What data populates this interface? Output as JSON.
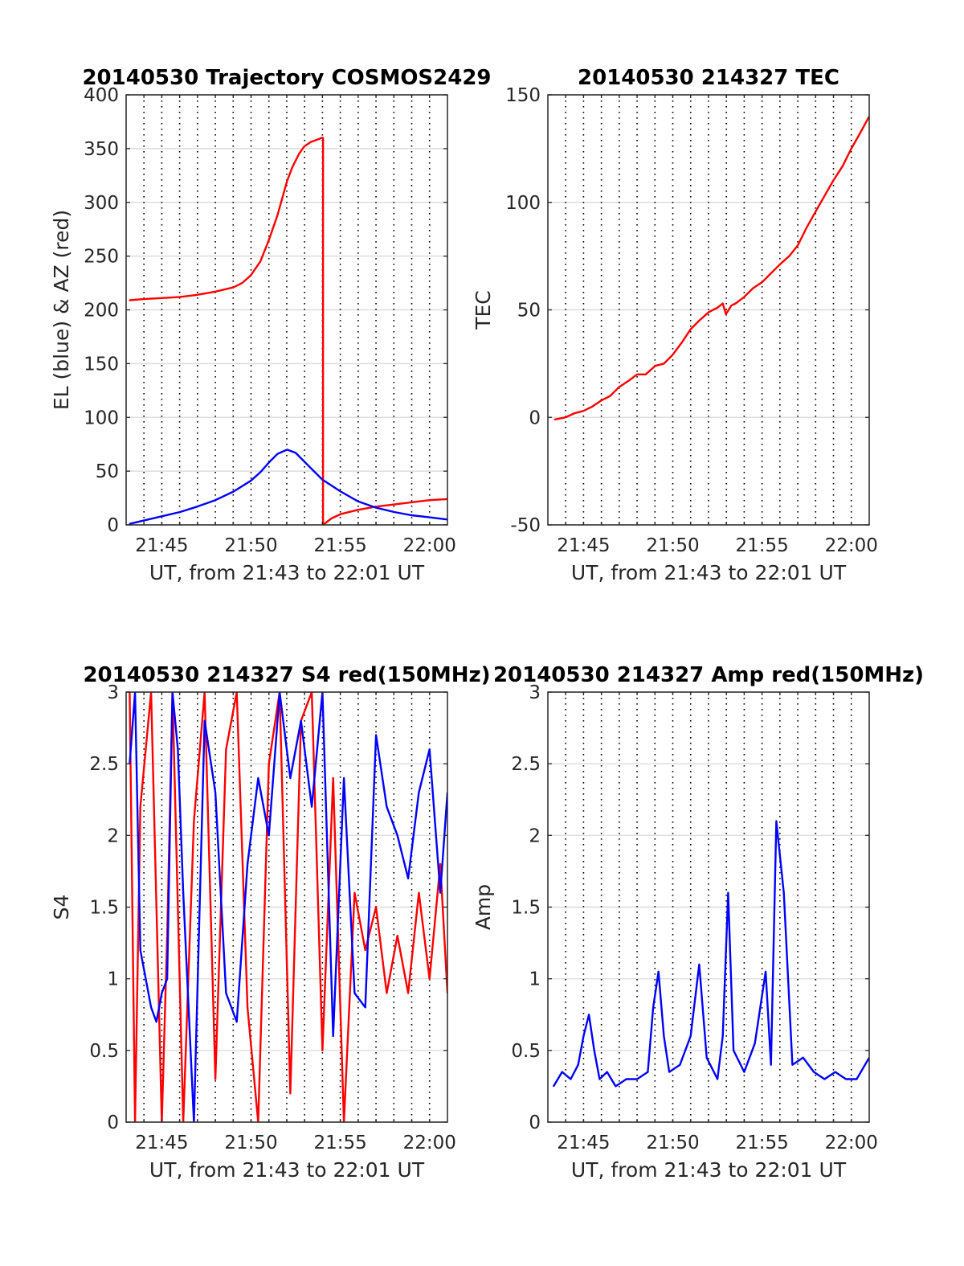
{
  "chart_data": [
    {
      "type": "line",
      "title": "20140530 Trajectory COSMOS2429",
      "xlabel": "UT, from 21:43 to 22:01 UT",
      "ylabel": "EL (blue) & AZ (red)",
      "xlim": [
        21.7167,
        22.0167
      ],
      "ylim": [
        0,
        400
      ],
      "yticks": [
        "0",
        "50",
        "100",
        "150",
        "200",
        "250",
        "300",
        "350",
        "400"
      ],
      "xticks": [
        "21:45",
        "21:50",
        "21:55",
        "22:00"
      ],
      "grid": "y-solid, x-dotted",
      "series": [
        {
          "color": "#ff0000",
          "x": [
            21.72,
            21.733,
            21.75,
            21.767,
            21.783,
            21.8,
            21.817,
            21.825,
            21.833,
            21.842,
            21.85,
            21.858,
            21.867,
            21.872,
            21.878,
            21.883,
            21.889,
            21.894,
            21.8995,
            21.9005,
            21.9005,
            21.9083,
            21.917,
            21.933,
            21.95,
            21.967,
            21.983,
            22.0,
            22.0167
          ],
          "values": [
            209,
            210,
            211,
            212,
            214,
            217,
            221,
            225,
            232,
            245,
            265,
            288,
            320,
            333,
            345,
            352,
            356,
            358,
            360,
            360,
            0,
            6,
            10,
            14,
            17,
            19,
            21,
            23,
            24
          ]
        },
        {
          "color": "#0000ff",
          "x": [
            21.72,
            21.75,
            21.767,
            21.783,
            21.8,
            21.817,
            21.833,
            21.842,
            21.85,
            21.858,
            21.867,
            21.875,
            21.883,
            21.892,
            21.9,
            21.917,
            21.933,
            21.95,
            21.967,
            21.983,
            22.0,
            22.0167
          ],
          "values": [
            1,
            8,
            12,
            17,
            23,
            31,
            41,
            49,
            58,
            66,
            70,
            67,
            59,
            50,
            42,
            31,
            22,
            16,
            12,
            9,
            7,
            5
          ]
        }
      ]
    },
    {
      "type": "line",
      "title": "20140530 214327 TEC",
      "xlabel": "UT, from 21:43 to 22:01 UT",
      "ylabel": "TEC",
      "xlim": [
        21.7167,
        22.0167
      ],
      "ylim": [
        -50,
        150
      ],
      "yticks": [
        "-50",
        "0",
        "50",
        "100",
        "150"
      ],
      "xticks": [
        "21:45",
        "21:50",
        "21:55",
        "22:00"
      ],
      "grid": "y-solid, x-dotted",
      "series": [
        {
          "color": "#ff0000",
          "x": [
            21.723,
            21.733,
            21.742,
            21.75,
            21.758,
            21.767,
            21.775,
            21.783,
            21.792,
            21.8,
            21.808,
            21.817,
            21.825,
            21.833,
            21.842,
            21.85,
            21.858,
            21.867,
            21.875,
            21.88,
            21.883,
            21.888,
            21.892,
            21.9,
            21.908,
            21.917,
            21.925,
            21.933,
            21.942,
            21.95,
            21.958,
            21.967,
            21.975,
            21.983,
            21.992,
            22.0,
            22.008,
            22.0167
          ],
          "values": [
            -1,
            0,
            2,
            3,
            5,
            8,
            10,
            14,
            17,
            20,
            20,
            24,
            25,
            29,
            35,
            41,
            45,
            49,
            51,
            53,
            48,
            52,
            53,
            56,
            60,
            63,
            67,
            71,
            75,
            80,
            88,
            96,
            103,
            110,
            117,
            125,
            132,
            140
          ]
        }
      ]
    },
    {
      "type": "line",
      "title": "20140530 214327 S4 red(150MHz)",
      "xlabel": "UT, from 21:43 to 22:01 UT",
      "ylabel": "S4",
      "xlim": [
        21.7167,
        22.0167
      ],
      "ylim": [
        0,
        3
      ],
      "yticks": [
        "0",
        "0.5",
        "1",
        "1.5",
        "2",
        "2.5",
        "3"
      ],
      "xticks": [
        "21:45",
        "21:50",
        "21:55",
        "22:00"
      ],
      "grid": "y-solid, x-dotted",
      "series": [
        {
          "color": "#ff0000",
          "x": [
            21.72,
            21.725,
            21.73,
            21.74,
            21.75,
            21.755,
            21.76,
            21.77,
            21.78,
            21.79,
            21.8,
            21.81,
            21.82,
            21.83,
            21.84,
            21.85,
            21.86,
            21.87,
            21.88,
            21.89,
            21.9,
            21.91,
            21.92,
            21.93,
            21.94,
            21.95,
            21.96,
            21.97,
            21.98,
            21.99,
            22.0,
            22.01,
            22.0167
          ],
          "values": [
            3.0,
            0,
            2.2,
            3.0,
            0,
            1.3,
            3.0,
            0,
            2.1,
            3.0,
            0.3,
            2.6,
            3.0,
            0.8,
            0,
            2.5,
            3.0,
            0.2,
            2.8,
            3.0,
            0.5,
            2.4,
            0,
            1.6,
            1.2,
            1.5,
            0.9,
            1.3,
            0.9,
            1.6,
            1.0,
            1.8,
            0.9
          ]
        },
        {
          "color": "#0000ff",
          "x": [
            21.72,
            21.725,
            21.73,
            21.74,
            21.745,
            21.75,
            21.755,
            21.76,
            21.765,
            21.77,
            21.78,
            21.79,
            21.8,
            21.81,
            21.82,
            21.83,
            21.84,
            21.85,
            21.86,
            21.87,
            21.88,
            21.89,
            21.9,
            21.91,
            21.92,
            21.93,
            21.94,
            21.95,
            21.96,
            21.97,
            21.98,
            21.99,
            22.0,
            22.01,
            22.0167
          ],
          "values": [
            2.5,
            3.0,
            1.2,
            0.8,
            0.7,
            0.9,
            1.0,
            3.0,
            2.6,
            1.6,
            0,
            2.8,
            2.3,
            0.9,
            0.7,
            1.8,
            2.4,
            2.0,
            3.0,
            2.4,
            2.8,
            2.2,
            3.0,
            0.6,
            2.4,
            0.9,
            0.8,
            2.7,
            2.2,
            2.0,
            1.7,
            2.3,
            2.6,
            1.6,
            2.3
          ]
        }
      ]
    },
    {
      "type": "line",
      "title": "20140530 214327 Amp red(150MHz)",
      "xlabel": "UT, from 21:43 to 22:01 UT",
      "ylabel": "Amp",
      "xlim": [
        21.7167,
        22.0167
      ],
      "ylim": [
        0,
        3
      ],
      "yticks": [
        "0",
        "0.5",
        "1",
        "1.5",
        "2",
        "2.5",
        "3"
      ],
      "xticks": [
        "21:45",
        "21:50",
        "21:55",
        "22:00"
      ],
      "grid": "y-solid, x-dotted",
      "series": [
        {
          "color": "#0000ff",
          "x": [
            21.722,
            21.73,
            21.738,
            21.745,
            21.75,
            21.755,
            21.76,
            21.765,
            21.772,
            21.78,
            21.79,
            21.8,
            21.81,
            21.815,
            21.82,
            21.825,
            21.83,
            21.84,
            21.85,
            21.858,
            21.865,
            21.875,
            21.88,
            21.885,
            21.89,
            21.9,
            21.91,
            21.92,
            21.925,
            21.93,
            21.937,
            21.945,
            21.955,
            21.965,
            21.975,
            21.985,
            21.995,
            22.005,
            22.0167
          ],
          "values": [
            0.25,
            0.35,
            0.3,
            0.4,
            0.6,
            0.75,
            0.5,
            0.3,
            0.35,
            0.25,
            0.3,
            0.3,
            0.35,
            0.8,
            1.05,
            0.6,
            0.35,
            0.4,
            0.6,
            1.1,
            0.45,
            0.3,
            0.6,
            1.6,
            0.5,
            0.35,
            0.55,
            1.05,
            0.4,
            2.1,
            1.6,
            0.4,
            0.45,
            0.35,
            0.3,
            0.35,
            0.3,
            0.3,
            0.45
          ]
        }
      ]
    }
  ]
}
